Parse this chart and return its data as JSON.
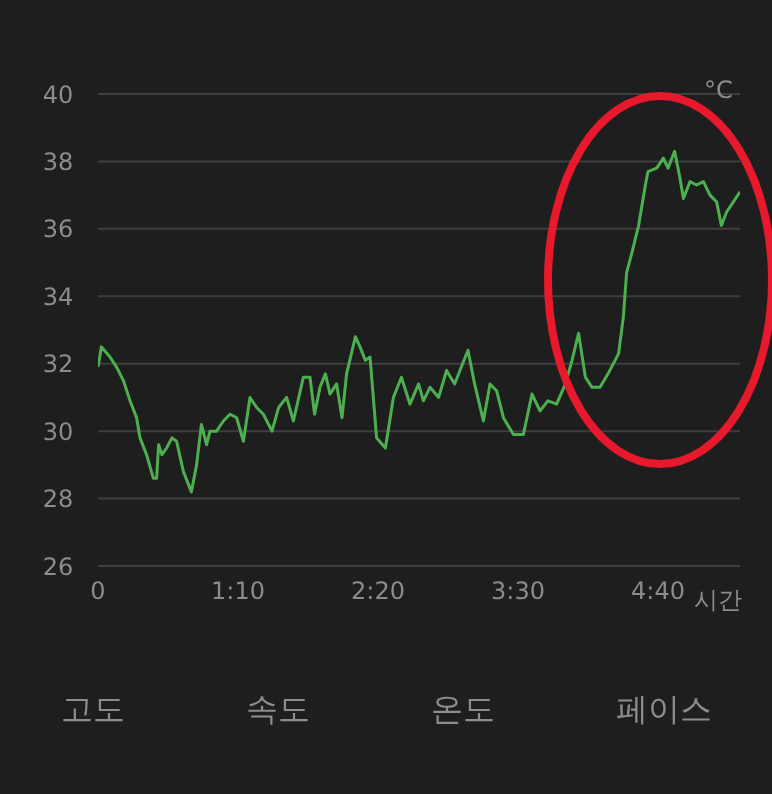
{
  "chart_data": {
    "type": "line",
    "xlabel": "시간",
    "ylabel": "°C",
    "x": [
      0,
      1.7,
      6,
      9.3,
      12.7,
      16,
      19.3,
      21,
      24.3,
      27.7,
      29.3,
      30.3,
      32,
      34.3,
      37,
      39.3,
      42.7,
      46.7,
      49.3,
      51.7,
      54.3,
      56,
      59.3,
      62.7,
      66,
      69.3,
      72.7,
      76,
      79.3,
      82.7,
      87,
      90.3,
      94.3,
      97.7,
      102.7,
      106,
      108.3,
      111,
      113.7,
      116,
      119.3,
      122,
      124.3,
      126.7,
      128.7,
      131,
      133.7,
      136,
      139.3,
      143.7,
      147.7,
      151.7,
      156,
      160.3,
      162.7,
      166,
      170.3,
      174.3,
      178.3,
      185,
      188.3,
      192.7,
      196,
      199.3,
      202.7,
      207.7,
      212.7,
      217,
      221,
      225,
      229.3,
      233.7,
      237,
      240.3,
      243.7,
      247,
      251,
      255,
      260.3,
      262.7,
      264.3,
      267,
      270.3,
      273.7,
      275,
      279.3,
      282.7,
      285,
      288.3,
      291,
      292.7,
      296,
      299.3,
      302.7,
      306,
      309.3,
      311.7,
      314.3,
      317.7,
      321
    ],
    "series": [
      {
        "color": "#4cb050",
        "values": [
          31.9,
          32.5,
          32.2,
          31.9,
          31.5,
          30.9,
          30.4,
          29.8,
          29.3,
          28.6,
          28.6,
          29.6,
          29.3,
          29.5,
          29.8,
          29.7,
          28.8,
          28.2,
          29.0,
          30.2,
          29.6,
          30.0,
          30.0,
          30.3,
          30.5,
          30.4,
          29.7,
          31.0,
          30.7,
          30.5,
          30.0,
          30.7,
          31.0,
          30.3,
          31.6,
          31.6,
          30.5,
          31.3,
          31.7,
          31.1,
          31.4,
          30.4,
          31.7,
          32.3,
          32.8,
          32.5,
          32.1,
          32.2,
          29.8,
          29.5,
          31.0,
          31.6,
          30.8,
          31.4,
          30.9,
          31.3,
          31.0,
          31.8,
          31.4,
          32.4,
          31.4,
          30.3,
          31.4,
          31.2,
          30.4,
          29.9,
          29.9,
          31.1,
          30.6,
          30.9,
          30.8,
          31.4,
          32.1,
          32.9,
          31.6,
          31.3,
          31.3,
          31.7,
          32.3,
          33.4,
          34.7,
          35.3,
          36.1,
          37.3,
          37.7,
          37.8,
          38.1,
          37.8,
          38.3,
          37.5,
          36.9,
          37.4,
          37.3,
          37.4,
          37.0,
          36.8,
          36.1,
          36.5,
          36.8,
          37.1
        ]
      }
    ],
    "xlim": [
      0,
      321
    ],
    "xticks": [
      {
        "value": 0,
        "label": "0"
      },
      {
        "value": 70,
        "label": "1:10"
      },
      {
        "value": 140,
        "label": "2:20"
      },
      {
        "value": 210,
        "label": "3:30"
      },
      {
        "value": 280,
        "label": "4:40"
      }
    ],
    "ylim": [
      26,
      40
    ],
    "yticks": [
      26,
      28,
      30,
      32,
      34,
      36,
      38,
      40
    ],
    "grid": "y",
    "marker": "none",
    "line_style": "solid",
    "legend": false,
    "annotations": [
      "고도",
      "속도",
      "온도",
      "페이스"
    ]
  }
}
